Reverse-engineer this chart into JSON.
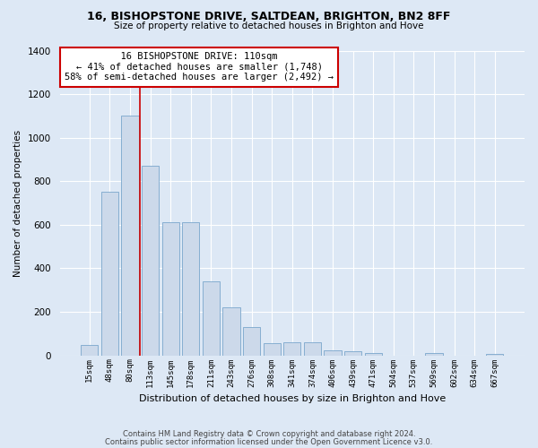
{
  "title": "16, BISHOPSTONE DRIVE, SALTDEAN, BRIGHTON, BN2 8FF",
  "subtitle": "Size of property relative to detached houses in Brighton and Hove",
  "xlabel": "Distribution of detached houses by size in Brighton and Hove",
  "ylabel": "Number of detached properties",
  "footer1": "Contains HM Land Registry data © Crown copyright and database right 2024.",
  "footer2": "Contains public sector information licensed under the Open Government Licence v3.0.",
  "annotation_line1": "16 BISHOPSTONE DRIVE: 110sqm",
  "annotation_line2": "← 41% of detached houses are smaller (1,748)",
  "annotation_line3": "58% of semi-detached houses are larger (2,492) →",
  "bar_labels": [
    "15sqm",
    "48sqm",
    "80sqm",
    "113sqm",
    "145sqm",
    "178sqm",
    "211sqm",
    "243sqm",
    "276sqm",
    "308sqm",
    "341sqm",
    "374sqm",
    "406sqm",
    "439sqm",
    "471sqm",
    "504sqm",
    "537sqm",
    "569sqm",
    "602sqm",
    "634sqm",
    "667sqm"
  ],
  "bar_values": [
    48,
    750,
    1100,
    870,
    610,
    610,
    340,
    220,
    130,
    55,
    60,
    60,
    25,
    20,
    10,
    0,
    0,
    10,
    0,
    0,
    5
  ],
  "bar_color": "#ccd9ea",
  "bar_edgecolor": "#7aa6cc",
  "vline_color": "#cc0000",
  "vline_x": 2.5,
  "ylim": [
    0,
    1400
  ],
  "yticks": [
    0,
    200,
    400,
    600,
    800,
    1000,
    1200,
    1400
  ],
  "bg_color": "#dde8f5",
  "grid_color": "#ffffff",
  "annotation_box_edgecolor": "#cc0000",
  "annotation_box_facecolor": "#ffffff"
}
